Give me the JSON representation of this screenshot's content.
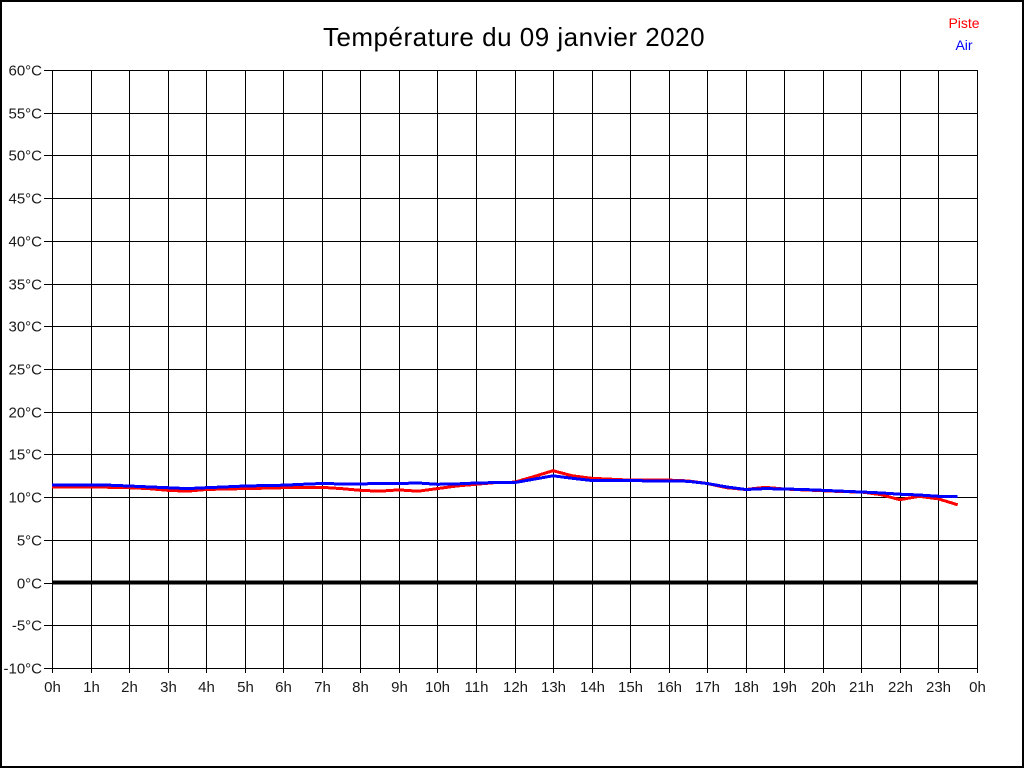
{
  "title": "Température du 09 janvier 2020",
  "legend": {
    "position": "top-right",
    "items": [
      {
        "label": "Piste",
        "color": "#ff0000"
      },
      {
        "label": "Air",
        "color": "#0000ff"
      }
    ]
  },
  "chart_data": {
    "type": "line",
    "title": "Température du 09 janvier 2020",
    "xlabel": "",
    "ylabel": "",
    "xlim": [
      0,
      24
    ],
    "ylim": [
      -10,
      60
    ],
    "grid": true,
    "grid_color": "#000000",
    "zero_line": {
      "value": 0,
      "color": "#000000",
      "width": 4
    },
    "x_ticks_hours": [
      0,
      1,
      2,
      3,
      4,
      5,
      6,
      7,
      8,
      9,
      10,
      11,
      12,
      13,
      14,
      15,
      16,
      17,
      18,
      19,
      20,
      21,
      22,
      23,
      24
    ],
    "x_tick_labels": [
      "0h",
      "1h",
      "2h",
      "3h",
      "4h",
      "5h",
      "6h",
      "7h",
      "8h",
      "9h",
      "10h",
      "11h",
      "12h",
      "13h",
      "14h",
      "15h",
      "16h",
      "17h",
      "18h",
      "19h",
      "20h",
      "21h",
      "22h",
      "23h",
      "0h"
    ],
    "y_ticks_values": [
      60,
      55,
      50,
      45,
      40,
      35,
      30,
      25,
      20,
      15,
      10,
      5,
      0,
      -5,
      -10
    ],
    "y_tick_labels": [
      "60°C",
      "55°C",
      "50°C",
      "45°C",
      "40°C",
      "35°C",
      "30°C",
      "25°C",
      "20°C",
      "15°C",
      "10°C",
      "5°C",
      "0°C",
      "-5°C",
      "-10°C"
    ],
    "x": [
      0,
      0.5,
      1,
      1.5,
      2,
      2.5,
      3,
      3.5,
      4,
      4.5,
      5,
      5.5,
      6,
      6.5,
      7,
      7.5,
      8,
      8.5,
      9,
      9.5,
      10,
      10.5,
      11,
      11.5,
      12,
      12.5,
      13,
      13.5,
      14,
      14.5,
      15,
      15.5,
      16,
      16.5,
      17,
      17.5,
      18,
      18.5,
      19,
      19.5,
      20,
      20.5,
      21,
      21.5,
      22,
      22.5,
      23,
      23.5
    ],
    "series": [
      {
        "name": "Piste",
        "color": "#ff0000",
        "values": [
          11.2,
          11.2,
          11.2,
          11.15,
          11.1,
          11.0,
          10.8,
          10.7,
          10.9,
          10.95,
          11.0,
          11.05,
          11.1,
          11.1,
          11.15,
          11.0,
          10.8,
          10.7,
          10.85,
          10.7,
          11.0,
          11.3,
          11.5,
          11.7,
          11.75,
          12.4,
          13.1,
          12.5,
          12.2,
          12.1,
          12.0,
          12.0,
          12.0,
          11.9,
          11.6,
          11.1,
          10.9,
          11.15,
          10.95,
          10.85,
          10.75,
          10.65,
          10.6,
          10.3,
          9.7,
          10.1,
          9.8,
          9.1
        ]
      },
      {
        "name": "Air",
        "color": "#0000ff",
        "values": [
          11.45,
          11.45,
          11.45,
          11.4,
          11.3,
          11.2,
          11.1,
          11.0,
          11.1,
          11.2,
          11.3,
          11.35,
          11.4,
          11.5,
          11.6,
          11.55,
          11.55,
          11.6,
          11.6,
          11.65,
          11.5,
          11.55,
          11.65,
          11.7,
          11.7,
          12.1,
          12.5,
          12.2,
          11.95,
          11.95,
          11.95,
          11.9,
          11.9,
          11.85,
          11.6,
          11.2,
          10.9,
          11.0,
          10.95,
          10.9,
          10.8,
          10.7,
          10.6,
          10.5,
          10.35,
          10.25,
          10.1,
          10.1
        ]
      }
    ]
  }
}
